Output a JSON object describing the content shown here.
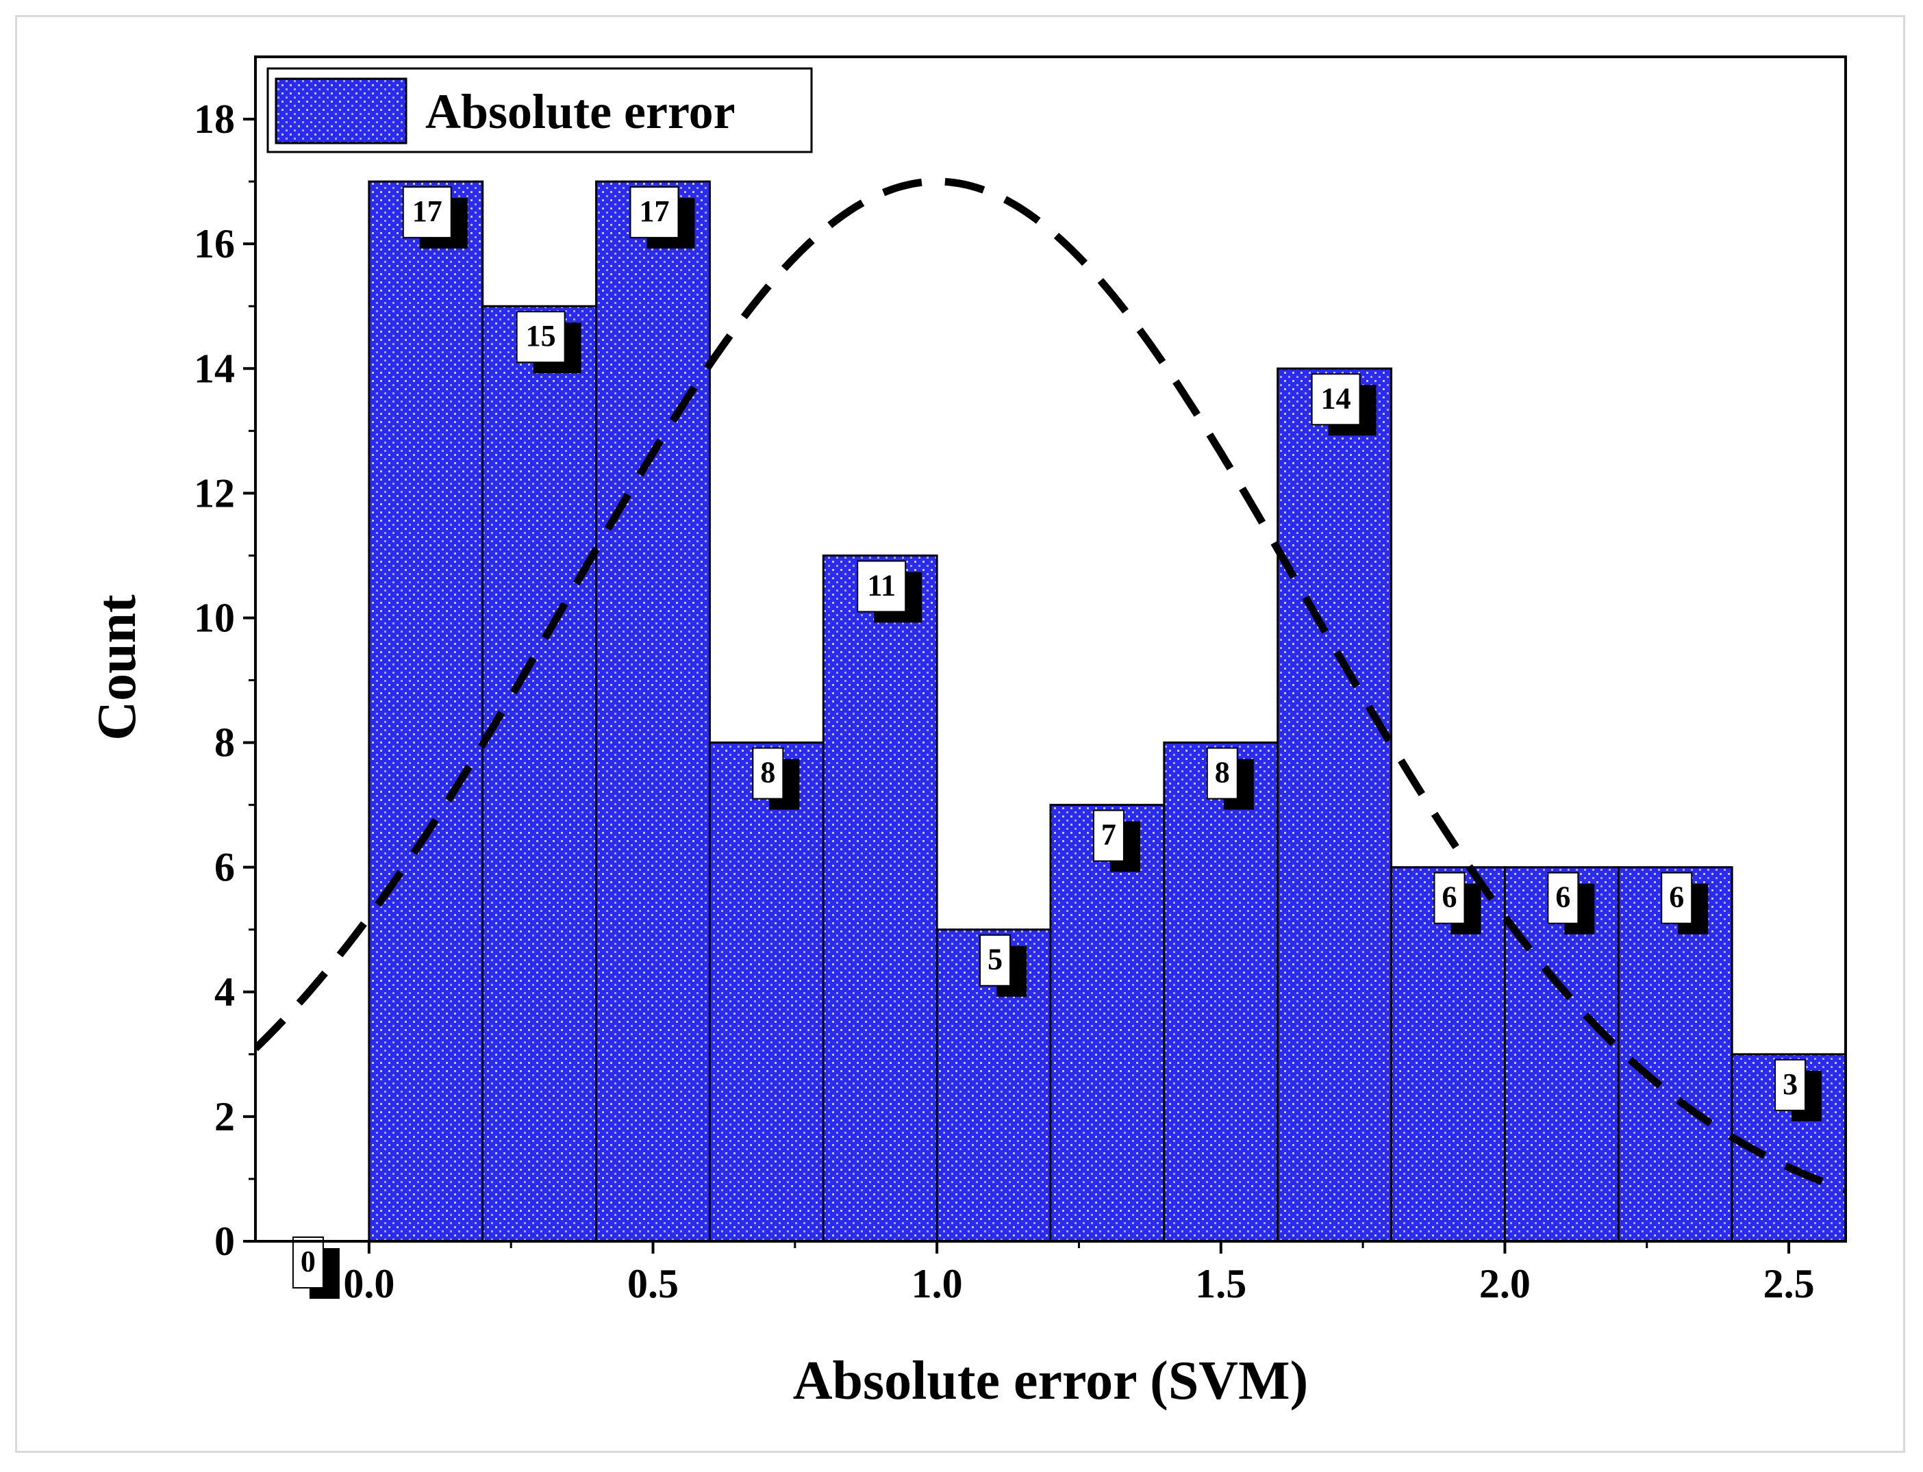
{
  "chart_data": {
    "type": "bar",
    "xlabel": "Absolute error (SVM)",
    "ylabel": "Count",
    "xlim": [
      -0.2,
      2.6
    ],
    "ylim": [
      0,
      19
    ],
    "xticks": [
      0.0,
      0.5,
      1.0,
      1.5,
      2.0,
      2.5
    ],
    "xtick_labels": [
      "0.0",
      "0.5",
      "1.0",
      "1.5",
      "2.0",
      "2.5"
    ],
    "yticks": [
      0,
      2,
      4,
      6,
      8,
      10,
      12,
      14,
      16,
      18
    ],
    "ytick_labels": [
      "0",
      "2",
      "4",
      "6",
      "8",
      "10",
      "12",
      "14",
      "16",
      "18"
    ],
    "bin_width": 0.2,
    "bins": [
      {
        "start": -0.2,
        "end": 0.0,
        "count": 0,
        "label": "0"
      },
      {
        "start": 0.0,
        "end": 0.2,
        "count": 17,
        "label": "17"
      },
      {
        "start": 0.2,
        "end": 0.4,
        "count": 15,
        "label": "15"
      },
      {
        "start": 0.4,
        "end": 0.6,
        "count": 17,
        "label": "17"
      },
      {
        "start": 0.6,
        "end": 0.8,
        "count": 8,
        "label": "8"
      },
      {
        "start": 0.8,
        "end": 1.0,
        "count": 11,
        "label": "11"
      },
      {
        "start": 1.0,
        "end": 1.2,
        "count": 5,
        "label": "5"
      },
      {
        "start": 1.2,
        "end": 1.4,
        "count": 7,
        "label": "7"
      },
      {
        "start": 1.4,
        "end": 1.6,
        "count": 8,
        "label": "8"
      },
      {
        "start": 1.6,
        "end": 1.8,
        "count": 14,
        "label": "14"
      },
      {
        "start": 1.8,
        "end": 2.0,
        "count": 6,
        "label": "6"
      },
      {
        "start": 2.0,
        "end": 2.2,
        "count": 6,
        "label": "6"
      },
      {
        "start": 2.2,
        "end": 2.4,
        "count": 6,
        "label": "6"
      },
      {
        "start": 2.4,
        "end": 2.6,
        "count": 3,
        "label": "3"
      }
    ],
    "fit_curve": {
      "type": "normal",
      "style": "dashed",
      "mean": 1.0,
      "sd": 0.65,
      "peak": 17
    },
    "legend": {
      "entries": [
        "Absolute error"
      ],
      "placement": "top-left"
    },
    "grid": false,
    "colors": {
      "bar_fill": "#2b2bee",
      "bar_dots": "#c9c9ff",
      "bar_edge": "#000000",
      "curve": "#000000"
    }
  }
}
